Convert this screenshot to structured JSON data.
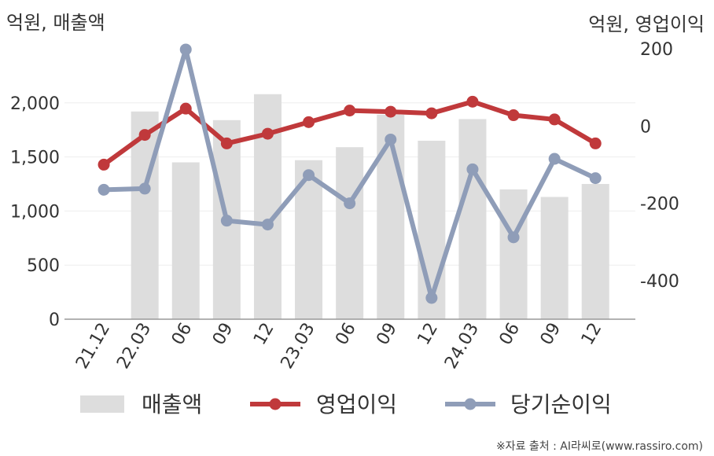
{
  "chart_data": {
    "type": "bar+line",
    "left_axis_label": "억원, 매출액",
    "right_axis_label": "억원, 영업이익",
    "categories": [
      "21.12",
      "22.03",
      "06",
      "09",
      "12",
      "23.03",
      "06",
      "09",
      "12",
      "24.03",
      "06",
      "09",
      "12"
    ],
    "left_ylim": [
      0,
      2500
    ],
    "left_ticks": [
      0,
      500,
      1000,
      1500,
      2000
    ],
    "right_ylim": [
      -500,
      200
    ],
    "right_ticks": [
      -400,
      -200,
      0,
      200
    ],
    "grid": true,
    "legend_position": "bottom",
    "series": [
      {
        "name": "매출액",
        "kind": "bar",
        "axis": "left",
        "color": "#dddddd",
        "values": [
          null,
          1920,
          1450,
          1840,
          2080,
          1470,
          1590,
          1890,
          1650,
          1850,
          1200,
          1130,
          1250
        ]
      },
      {
        "name": "영업이익",
        "kind": "line",
        "axis": "right",
        "color": "#c0393b",
        "values": [
          -100,
          -23,
          45,
          -45,
          -20,
          10,
          40,
          37,
          33,
          63,
          28,
          17,
          -45
        ]
      },
      {
        "name": "당기순이익",
        "kind": "line",
        "axis": "right",
        "color": "#8f9db8",
        "values": [
          -165,
          -162,
          198,
          -245,
          -255,
          -127,
          -200,
          -35,
          -445,
          -112,
          -288,
          -85,
          -135
        ]
      }
    ]
  },
  "source": "※자료 출처 : AI라씨로(www.rassiro.com)"
}
